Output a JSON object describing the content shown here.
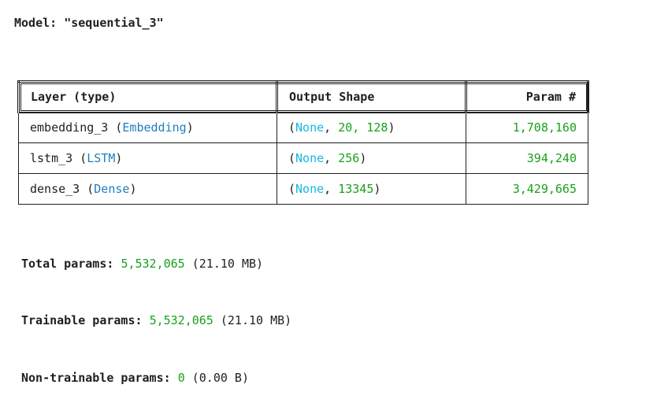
{
  "model_label": "Model: \"sequential_3\"",
  "table": {
    "headers": [
      "Layer (type)",
      "Output Shape",
      "Param #"
    ],
    "rows": [
      {
        "name": "embedding_3",
        "type": "Embedding",
        "shape_prefix": "None",
        "shape_dims": "20, 128",
        "params": "1,708,160"
      },
      {
        "name": "lstm_3",
        "type": "LSTM",
        "shape_prefix": "None",
        "shape_dims": "256",
        "params": "394,240"
      },
      {
        "name": "dense_3",
        "type": "Dense",
        "shape_prefix": "None",
        "shape_dims": "13345",
        "params": "3,429,665"
      }
    ]
  },
  "totals": {
    "total": {
      "label": "Total params:",
      "count": "5,532,065",
      "size": "(21.10 MB)"
    },
    "trainable": {
      "label": "Trainable params:",
      "count": "5,532,065",
      "size": "(21.10 MB)"
    },
    "non_trainable": {
      "label": "Non-trainable params:",
      "count": "0",
      "size": "(0.00 B)"
    }
  },
  "colors": {
    "type": "#1f7fbf",
    "none": "#19b6e0",
    "number": "#19a019"
  }
}
